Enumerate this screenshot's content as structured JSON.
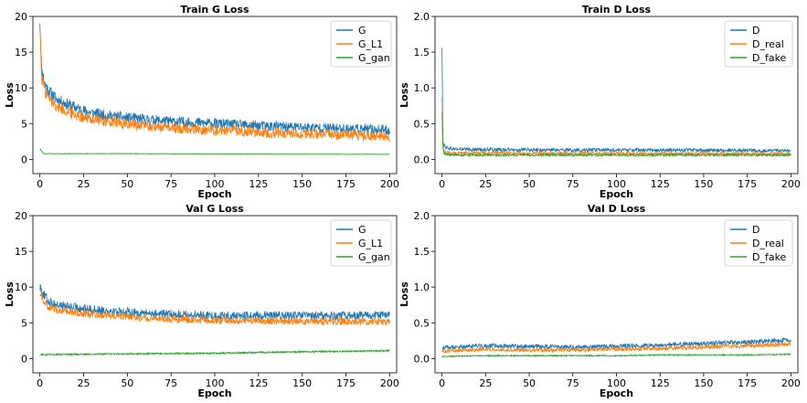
{
  "chart_data": [
    {
      "type": "line",
      "title": "Train G Loss",
      "xlabel": "Epoch",
      "ylabel": "Loss",
      "xlim": [
        -4,
        204
      ],
      "ylim": [
        -2,
        20
      ],
      "xticks": [
        "0",
        "25",
        "50",
        "75",
        "100",
        "125",
        "150",
        "175",
        "200"
      ],
      "yticks": [
        "0",
        "5",
        "10",
        "15",
        "20"
      ],
      "legend_position": "top-right",
      "series": [
        {
          "name": "G",
          "color": "#1f77b4",
          "x": [
            0,
            1,
            2,
            3,
            5,
            10,
            15,
            20,
            25,
            30,
            40,
            50,
            60,
            75,
            100,
            125,
            150,
            175,
            200
          ],
          "values": [
            19.5,
            12.5,
            11.5,
            10.5,
            9.6,
            8.3,
            7.8,
            7.3,
            6.8,
            6.5,
            6.1,
            5.8,
            5.6,
            5.3,
            5.0,
            4.7,
            4.5,
            4.3,
            4.1
          ],
          "noise": 1.4
        },
        {
          "name": "G_L1",
          "color": "#ff7f0e",
          "x": [
            0,
            1,
            2,
            3,
            5,
            10,
            15,
            20,
            25,
            30,
            40,
            50,
            60,
            75,
            100,
            125,
            150,
            175,
            200
          ],
          "values": [
            18.5,
            11.5,
            10.5,
            9.5,
            8.6,
            7.4,
            6.8,
            6.3,
            5.9,
            5.6,
            5.2,
            4.9,
            4.7,
            4.4,
            4.1,
            3.8,
            3.6,
            3.4,
            3.2
          ],
          "noise": 1.4
        },
        {
          "name": "G_gan",
          "color": "#2ca02c",
          "x": [
            0,
            2,
            50,
            100,
            150,
            200
          ],
          "values": [
            1.5,
            0.8,
            0.8,
            0.75,
            0.72,
            0.7
          ],
          "noise": 0.08
        }
      ]
    },
    {
      "type": "line",
      "title": "Train D Loss",
      "xlabel": "Epoch",
      "ylabel": "Loss",
      "xlim": [
        -4,
        204
      ],
      "ylim": [
        -0.2,
        2.0
      ],
      "xticks": [
        "0",
        "25",
        "50",
        "75",
        "100",
        "125",
        "150",
        "175",
        "200"
      ],
      "yticks": [
        "0.0",
        "0.5",
        "1.0",
        "1.5",
        "2.0"
      ],
      "legend_position": "top-right",
      "series": [
        {
          "name": "D",
          "color": "#1f77b4",
          "x": [
            0,
            0.5,
            1,
            2,
            5,
            10,
            50,
            100,
            150,
            200
          ],
          "values": [
            1.55,
            0.3,
            0.2,
            0.17,
            0.15,
            0.14,
            0.13,
            0.13,
            0.13,
            0.12
          ],
          "noise": 0.05
        },
        {
          "name": "D_real",
          "color": "#ff7f0e",
          "x": [
            0,
            0.5,
            1,
            2,
            5,
            10,
            50,
            100,
            150,
            200
          ],
          "values": [
            0.85,
            0.2,
            0.12,
            0.1,
            0.09,
            0.09,
            0.085,
            0.085,
            0.08,
            0.08
          ],
          "noise": 0.04
        },
        {
          "name": "D_fake",
          "color": "#2ca02c",
          "x": [
            0,
            0.5,
            1,
            2,
            5,
            10,
            50,
            100,
            150,
            200
          ],
          "values": [
            0.65,
            0.15,
            0.09,
            0.07,
            0.065,
            0.06,
            0.06,
            0.06,
            0.06,
            0.06
          ],
          "noise": 0.03
        }
      ]
    },
    {
      "type": "line",
      "title": "Val G Loss",
      "xlabel": "Epoch",
      "ylabel": "Loss",
      "xlim": [
        -4,
        204
      ],
      "ylim": [
        -2,
        20
      ],
      "xticks": [
        "0",
        "25",
        "50",
        "75",
        "100",
        "125",
        "150",
        "175",
        "200"
      ],
      "yticks": [
        "0",
        "5",
        "10",
        "15",
        "20"
      ],
      "legend_position": "top-right",
      "series": [
        {
          "name": "G",
          "color": "#1f77b4",
          "x": [
            0,
            2,
            5,
            10,
            25,
            50,
            75,
            100,
            125,
            150,
            175,
            200
          ],
          "values": [
            10.2,
            9.0,
            8.0,
            7.5,
            7.0,
            6.5,
            6.2,
            6.0,
            6.0,
            6.0,
            6.0,
            6.1
          ],
          "noise": 1.2
        },
        {
          "name": "G_L1",
          "color": "#ff7f0e",
          "x": [
            0,
            2,
            5,
            10,
            25,
            50,
            75,
            100,
            125,
            150,
            175,
            200
          ],
          "values": [
            9.5,
            8.2,
            7.2,
            6.8,
            6.3,
            5.8,
            5.5,
            5.3,
            5.3,
            5.2,
            5.2,
            5.2
          ],
          "noise": 1.0
        },
        {
          "name": "G_gan",
          "color": "#2ca02c",
          "x": [
            0,
            50,
            100,
            150,
            200
          ],
          "values": [
            0.55,
            0.65,
            0.75,
            0.95,
            1.1
          ],
          "noise": 0.25
        }
      ]
    },
    {
      "type": "line",
      "title": "Val D Loss",
      "xlabel": "Epoch",
      "ylabel": "Loss",
      "xlim": [
        -4,
        204
      ],
      "ylim": [
        -0.2,
        2.0
      ],
      "xticks": [
        "0",
        "25",
        "50",
        "75",
        "100",
        "125",
        "150",
        "175",
        "200"
      ],
      "yticks": [
        "0.0",
        "0.5",
        "1.0",
        "1.5",
        "2.0"
      ],
      "legend_position": "top-right",
      "series": [
        {
          "name": "D",
          "color": "#1f77b4",
          "x": [
            0,
            25,
            50,
            75,
            100,
            125,
            150,
            175,
            200
          ],
          "values": [
            0.15,
            0.18,
            0.17,
            0.16,
            0.17,
            0.19,
            0.21,
            0.23,
            0.26
          ],
          "noise": 0.07
        },
        {
          "name": "D_real",
          "color": "#ff7f0e",
          "x": [
            0,
            25,
            50,
            75,
            100,
            125,
            150,
            175,
            200
          ],
          "values": [
            0.1,
            0.13,
            0.12,
            0.12,
            0.13,
            0.14,
            0.16,
            0.18,
            0.2
          ],
          "noise": 0.06
        },
        {
          "name": "D_fake",
          "color": "#2ca02c",
          "x": [
            0,
            25,
            50,
            75,
            100,
            125,
            150,
            175,
            200
          ],
          "values": [
            0.03,
            0.04,
            0.04,
            0.04,
            0.04,
            0.05,
            0.05,
            0.05,
            0.06
          ],
          "noise": 0.02
        }
      ]
    }
  ]
}
